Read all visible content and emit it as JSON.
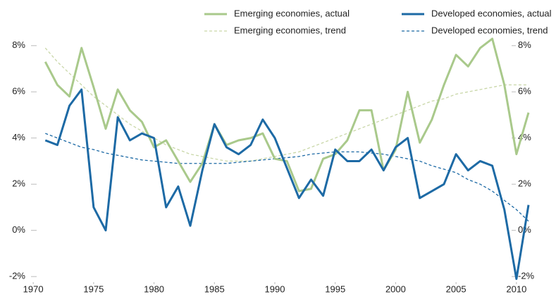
{
  "chart_data": {
    "type": "line",
    "x": [
      1971,
      1972,
      1973,
      1974,
      1975,
      1976,
      1977,
      1978,
      1979,
      1980,
      1981,
      1982,
      1983,
      1984,
      1985,
      1986,
      1987,
      1988,
      1989,
      1990,
      1991,
      1992,
      1993,
      1994,
      1995,
      1996,
      1997,
      1998,
      1999,
      2000,
      2001,
      2002,
      2003,
      2004,
      2005,
      2006,
      2007,
      2008,
      2009,
      2010,
      2011
    ],
    "series": [
      {
        "name": "Emerging economies, actual",
        "color": "#a9c98b",
        "dashed": false,
        "values": [
          7.3,
          6.3,
          5.8,
          7.9,
          6.2,
          4.4,
          6.1,
          5.2,
          4.7,
          3.6,
          3.9,
          3.0,
          2.1,
          2.9,
          4.6,
          3.7,
          3.9,
          4.0,
          4.2,
          3.1,
          3.0,
          1.7,
          1.8,
          3.1,
          3.3,
          3.9,
          5.2,
          5.2,
          2.6,
          3.5,
          6.0,
          3.8,
          4.8,
          6.3,
          7.6,
          7.1,
          7.9,
          8.3,
          6.3,
          3.3,
          5.1
        ]
      },
      {
        "name": "Developed economies, actual",
        "color": "#1d6aa5",
        "dashed": false,
        "values": [
          3.9,
          3.7,
          5.4,
          6.1,
          1.0,
          0.0,
          4.9,
          3.9,
          4.2,
          4.0,
          1.0,
          1.9,
          0.2,
          2.6,
          4.6,
          3.6,
          3.3,
          3.7,
          4.8,
          4.0,
          2.7,
          1.4,
          2.2,
          1.5,
          3.5,
          3.0,
          3.0,
          3.5,
          2.6,
          3.6,
          4.0,
          1.4,
          1.7,
          2.0,
          3.3,
          2.6,
          3.0,
          2.8,
          0.9,
          -2.1,
          1.1
        ]
      },
      {
        "name": "Emerging economies, trend",
        "color": "#c9d7a8",
        "dashed": true,
        "values": [
          7.9,
          7.3,
          6.8,
          6.3,
          5.8,
          5.4,
          5.0,
          4.6,
          4.3,
          4.0,
          3.7,
          3.5,
          3.3,
          3.2,
          3.1,
          3.0,
          3.0,
          3.0,
          3.1,
          3.2,
          3.3,
          3.4,
          3.6,
          3.8,
          4.0,
          4.2,
          4.4,
          4.6,
          4.8,
          5.0,
          5.2,
          5.4,
          5.6,
          5.7,
          5.9,
          6.0,
          6.1,
          6.2,
          6.3,
          6.3,
          6.3
        ]
      },
      {
        "name": "Developed economies, trend",
        "color": "#1d6aa5",
        "dashed": true,
        "values": [
          4.2,
          4.0,
          3.8,
          3.6,
          3.5,
          3.35,
          3.25,
          3.15,
          3.05,
          3.0,
          2.95,
          2.9,
          2.9,
          2.9,
          2.9,
          2.9,
          2.95,
          3.0,
          3.05,
          3.1,
          3.15,
          3.2,
          3.3,
          3.35,
          3.4,
          3.4,
          3.4,
          3.35,
          3.3,
          3.2,
          3.1,
          3.0,
          2.8,
          2.65,
          2.5,
          2.2,
          2.0,
          1.7,
          1.3,
          0.9,
          0.4
        ]
      }
    ],
    "xlim": [
      1969,
      2012.75
    ],
    "xticks": [
      1970,
      1975,
      1980,
      1985,
      1990,
      1995,
      2000,
      2005,
      2010
    ],
    "ylim": [
      -2.3,
      9
    ],
    "yticks": [
      {
        "value": -2,
        "label": "-2%"
      },
      {
        "value": 0,
        "label": "0%"
      },
      {
        "value": 2,
        "label": "2%"
      },
      {
        "value": 4,
        "label": "4%"
      },
      {
        "value": 6,
        "label": "6%"
      },
      {
        "value": 8,
        "label": "8%"
      }
    ],
    "legend": "top-right"
  }
}
